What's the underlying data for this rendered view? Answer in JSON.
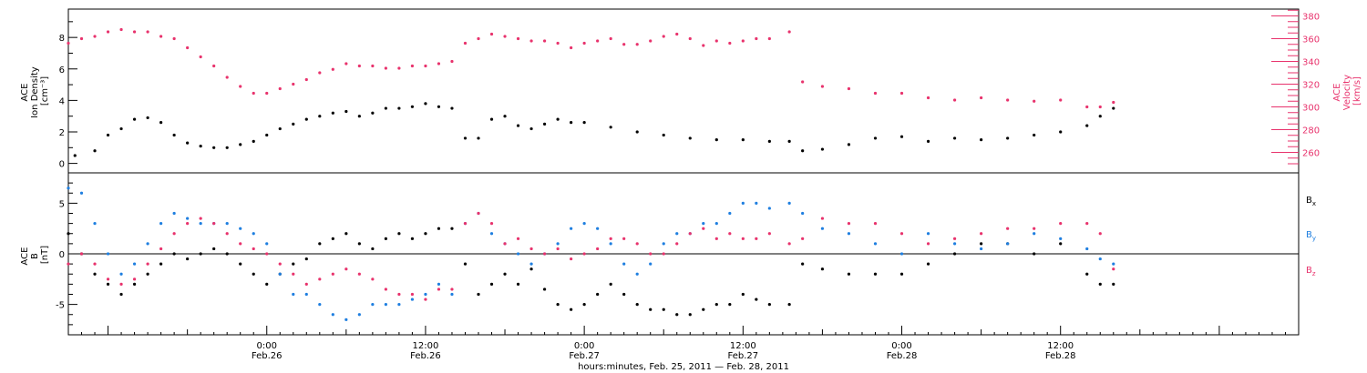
{
  "chart_data": {
    "type": "scatter",
    "x_axis": {
      "title": "hours:minutes, Feb. 25, 2011 — Feb. 28, 2011",
      "range_hours": [
        -15,
        78
      ],
      "ticks": [
        {
          "hour": 0,
          "time": "0:00",
          "date": "Feb.26"
        },
        {
          "hour": 12,
          "time": "12:00",
          "date": "Feb.26"
        },
        {
          "hour": 24,
          "time": "0:00",
          "date": "Feb.27"
        },
        {
          "hour": 36,
          "time": "12:00",
          "date": "Feb.27"
        },
        {
          "hour": 48,
          "time": "0:00",
          "date": "Feb.28"
        },
        {
          "hour": 60,
          "time": "12:00",
          "date": "Feb.28"
        }
      ]
    },
    "panels": [
      {
        "name": "density_velocity",
        "left_axis": {
          "label_lines": [
            "ACE",
            "Ion Density",
            "[cm⁻³]"
          ],
          "ylim": [
            -0.6,
            9.8
          ],
          "ticks": [
            0,
            2,
            4,
            6,
            8
          ],
          "tick_labels": [
            "0",
            "2",
            "4",
            "6",
            "8"
          ]
        },
        "right_axis": {
          "label_lines": [
            "ACE",
            "Velocity",
            "[km/s]"
          ],
          "ylim": [
            242,
            386
          ],
          "ticks": [
            260,
            280,
            300,
            320,
            340,
            360,
            380
          ],
          "tick_labels": [
            "260",
            "280",
            "300",
            "320",
            "340",
            "360",
            "380"
          ],
          "color": "#e8336d"
        },
        "series": [
          {
            "name": "Ion Density",
            "axis": "left",
            "color": "#000000",
            "hours": [
              -14.5,
              -13,
              -12,
              -11,
              -10,
              -9,
              -8,
              -7,
              -6,
              -5,
              -4,
              -3,
              -2,
              -1,
              0,
              1,
              2,
              3,
              4,
              5,
              6,
              7,
              8,
              9,
              10,
              11,
              12,
              13,
              14,
              15,
              16,
              17,
              18,
              19,
              20,
              21,
              22,
              23,
              24,
              26,
              28,
              30,
              32,
              34,
              36,
              38,
              39.5,
              40.5,
              42,
              44,
              46,
              48,
              50,
              52,
              54,
              56,
              58,
              60,
              62,
              63,
              64
            ],
            "values": [
              0.5,
              0.8,
              1.8,
              2.2,
              2.8,
              2.9,
              2.6,
              1.8,
              1.3,
              1.1,
              1.0,
              1.0,
              1.2,
              1.4,
              1.8,
              2.2,
              2.5,
              2.8,
              3.0,
              3.2,
              3.3,
              3.0,
              3.2,
              3.5,
              3.5,
              3.6,
              3.8,
              3.6,
              3.5,
              1.6,
              1.6,
              2.8,
              3.0,
              2.4,
              2.2,
              2.5,
              2.8,
              2.6,
              2.6,
              2.3,
              2.0,
              1.8,
              1.6,
              1.5,
              1.5,
              1.4,
              1.4,
              0.8,
              0.9,
              1.2,
              1.6,
              1.7,
              1.4,
              1.6,
              1.5,
              1.6,
              1.8,
              2.0,
              2.4,
              3.0,
              3.5
            ]
          },
          {
            "name": "Velocity",
            "axis": "right",
            "color": "#e8336d",
            "hours": [
              -15,
              -14,
              -13,
              -12,
              -11,
              -10,
              -9,
              -8,
              -7,
              -6,
              -5,
              -4,
              -3,
              -2,
              -1,
              0,
              1,
              2,
              3,
              4,
              5,
              6,
              7,
              8,
              9,
              10,
              11,
              12,
              13,
              14,
              15,
              16,
              17,
              18,
              19,
              20,
              21,
              22,
              23,
              24,
              25,
              26,
              27,
              28,
              29,
              30,
              31,
              32,
              33,
              34,
              35,
              36,
              37,
              38,
              39.5,
              40.5,
              42,
              44,
              46,
              48,
              50,
              52,
              54,
              56,
              58,
              60,
              62,
              63,
              64
            ],
            "values": [
              356,
              360,
              362,
              366,
              368,
              366,
              366,
              362,
              360,
              352,
              344,
              336,
              326,
              318,
              312,
              312,
              316,
              320,
              324,
              330,
              333,
              338,
              336,
              336,
              334,
              334,
              336,
              336,
              338,
              340,
              356,
              360,
              364,
              362,
              360,
              358,
              358,
              356,
              352,
              356,
              358,
              360,
              355,
              355,
              358,
              362,
              364,
              360,
              354,
              358,
              356,
              358,
              360,
              360,
              366,
              322,
              318,
              316,
              312,
              312,
              308,
              306,
              308,
              306,
              305,
              306,
              300,
              300,
              304
            ]
          }
        ]
      },
      {
        "name": "magnetic_field",
        "left_axis": {
          "label_lines": [
            "ACE",
            "B",
            "[nT]"
          ],
          "ylim": [
            -8,
            8
          ],
          "ticks": [
            -5,
            0,
            5
          ],
          "tick_labels": [
            "-5",
            "0",
            "5"
          ]
        },
        "zero_line": 0,
        "series": [
          {
            "name": "Bx",
            "color": "#000000",
            "hours": [
              -15,
              -14,
              -13,
              -12,
              -11,
              -10,
              -9,
              -8,
              -7,
              -6,
              -5,
              -4,
              -3,
              -2,
              -1,
              0,
              1,
              2,
              3,
              4,
              5,
              6,
              7,
              8,
              9,
              10,
              11,
              12,
              13,
              14,
              15,
              16,
              17,
              18,
              19,
              20,
              21,
              22,
              23,
              24,
              25,
              26,
              27,
              28,
              29,
              30,
              31,
              32,
              33,
              34,
              35,
              36,
              37,
              38,
              39.5,
              40.5,
              42,
              44,
              46,
              48,
              50,
              52,
              54,
              56,
              58,
              60,
              62,
              63,
              64
            ],
            "values": [
              2,
              0,
              -2,
              -3,
              -4,
              -3,
              -2,
              -1,
              0,
              -0.5,
              0,
              0.5,
              0,
              -1,
              -2,
              -3,
              -2,
              -1,
              -0.5,
              1,
              1.5,
              2,
              1,
              0.5,
              1.5,
              2,
              1.5,
              2,
              2.5,
              2.5,
              -1,
              -4,
              -3,
              -2,
              -3,
              -1.5,
              -3.5,
              -5,
              -5.5,
              -5,
              -4,
              -3,
              -4,
              -5,
              -5.5,
              -5.5,
              -6,
              -6,
              -5.5,
              -5,
              -5,
              -4,
              -4.5,
              -5,
              -5,
              -1,
              -1.5,
              -2,
              -2,
              -2,
              -1,
              0,
              1,
              1,
              0,
              1,
              -2,
              -3,
              -3
            ]
          },
          {
            "name": "By",
            "color": "#1f7fe0",
            "hours": [
              -15,
              -14,
              -13,
              -12,
              -11,
              -10,
              -9,
              -8,
              -7,
              -6,
              -5,
              -4,
              -3,
              -2,
              -1,
              0,
              1,
              2,
              3,
              4,
              5,
              6,
              7,
              8,
              9,
              10,
              11,
              12,
              13,
              14,
              15,
              16,
              17,
              18,
              19,
              20,
              21,
              22,
              23,
              24,
              25,
              26,
              27,
              28,
              29,
              30,
              31,
              32,
              33,
              34,
              35,
              36,
              37,
              38,
              39.5,
              40.5,
              42,
              44,
              46,
              48,
              50,
              52,
              54,
              56,
              58,
              60,
              62,
              63,
              64
            ],
            "values": [
              6.5,
              6,
              3,
              0,
              -2,
              -1,
              1,
              3,
              4,
              3.5,
              3,
              3,
              3,
              2.5,
              2,
              1,
              -2,
              -4,
              -4,
              -5,
              -6,
              -6.5,
              -6,
              -5,
              -5,
              -5,
              -4.5,
              -4,
              -3,
              -4,
              3,
              4,
              2,
              1,
              0,
              -1,
              0,
              1,
              2.5,
              3,
              2.5,
              1,
              -1,
              -2,
              -1,
              1,
              2,
              2,
              3,
              3,
              4,
              5,
              5,
              4.5,
              5,
              4,
              2.5,
              2,
              1,
              0,
              2,
              1,
              0.5,
              1,
              2,
              1.5,
              0.5,
              -0.5,
              -1
            ]
          },
          {
            "name": "Bz",
            "color": "#e8336d",
            "hours": [
              -15,
              -14,
              -13,
              -12,
              -11,
              -10,
              -9,
              -8,
              -7,
              -6,
              -5,
              -4,
              -3,
              -2,
              -1,
              0,
              1,
              2,
              3,
              4,
              5,
              6,
              7,
              8,
              9,
              10,
              11,
              12,
              13,
              14,
              15,
              16,
              17,
              18,
              19,
              20,
              21,
              22,
              23,
              24,
              25,
              26,
              27,
              28,
              29,
              30,
              31,
              32,
              33,
              34,
              35,
              36,
              37,
              38,
              39.5,
              40.5,
              42,
              44,
              46,
              48,
              50,
              52,
              54,
              56,
              58,
              60,
              62,
              63,
              64
            ],
            "values": [
              -1,
              0,
              -1,
              -2.5,
              -3,
              -2.5,
              -1,
              0.5,
              2,
              3,
              3.5,
              3,
              2,
              1,
              0.5,
              0,
              -1,
              -2,
              -3,
              -2.5,
              -2,
              -1.5,
              -2,
              -2.5,
              -3.5,
              -4,
              -4,
              -4.5,
              -3.5,
              -3.5,
              3,
              4,
              3,
              1,
              1.5,
              0.5,
              0,
              0.5,
              -0.5,
              0,
              0.5,
              1.5,
              1.5,
              1,
              0,
              0,
              1,
              2,
              2.5,
              1.5,
              2,
              1.5,
              1.5,
              2,
              1,
              1.5,
              3.5,
              3,
              3,
              2,
              1,
              1.5,
              2,
              2.5,
              2.5,
              3,
              3,
              2,
              -1.5
            ]
          }
        ],
        "legend": {
          "placement": "right",
          "items": [
            {
              "base": "B",
              "sub": "x",
              "color": "#000000"
            },
            {
              "base": "B",
              "sub": "y",
              "color": "#1f7fe0"
            },
            {
              "base": "B",
              "sub": "z",
              "color": "#e8336d"
            }
          ]
        }
      }
    ],
    "grid": false
  }
}
